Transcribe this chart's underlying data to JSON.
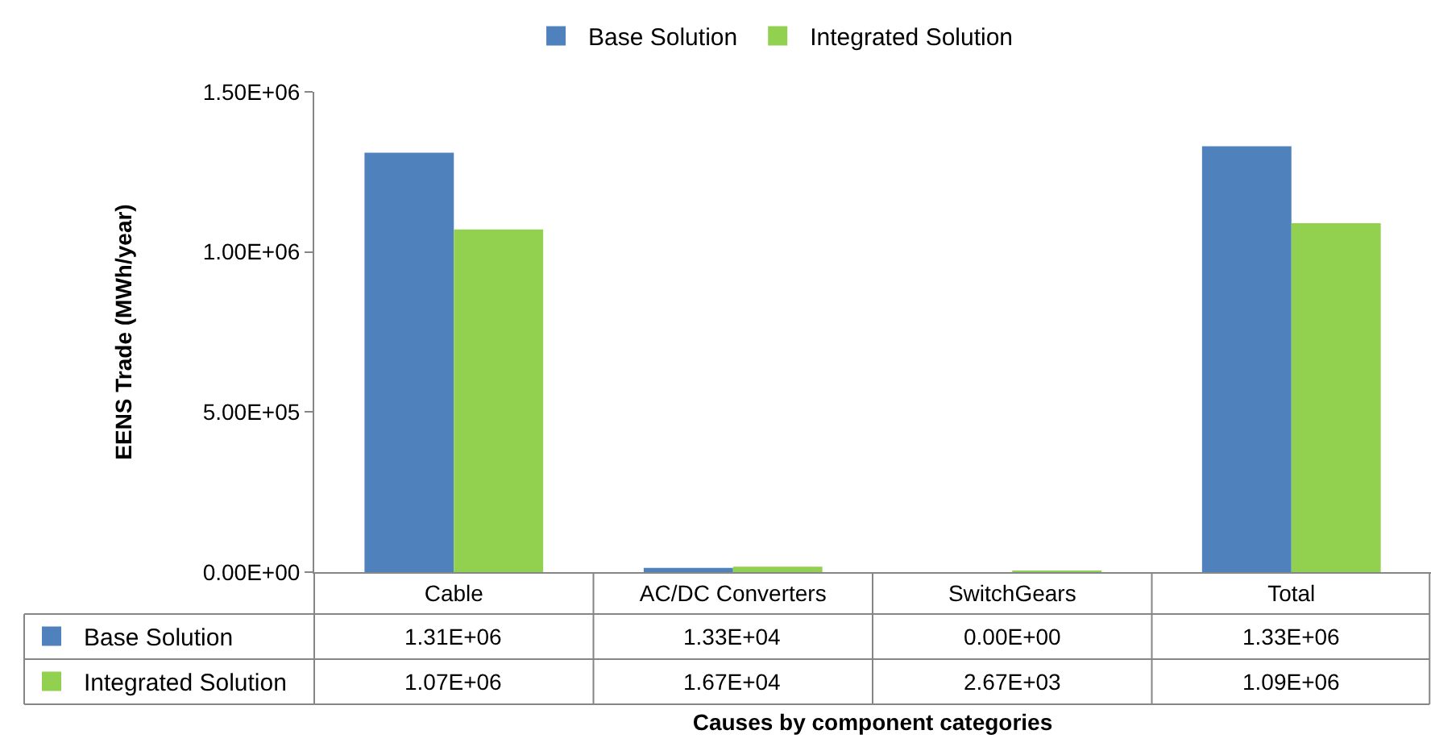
{
  "chart_data": {
    "type": "bar",
    "xlabel": "Causes by component categories",
    "ylabel": "EENS Trade (MWh/year)",
    "categories": [
      "Cable",
      "AC/DC Converters",
      "SwitchGears",
      "Total"
    ],
    "series": [
      {
        "name": "Base Solution",
        "color": "#4f81bd",
        "values": [
          1310000,
          13300,
          0,
          1330000
        ],
        "value_labels": [
          "1.31E+06",
          "1.33E+04",
          "0.00E+00",
          "1.33E+06"
        ]
      },
      {
        "name": "Integrated Solution",
        "color": "#92d050",
        "values": [
          1070000,
          16700,
          2670,
          1090000
        ],
        "value_labels": [
          "1.07E+06",
          "1.67E+04",
          "2.67E+03",
          "1.09E+06"
        ]
      }
    ],
    "ylim": [
      0,
      1500000
    ],
    "yticks": [
      {
        "value": 0,
        "label": "0.00E+00"
      },
      {
        "value": 500000,
        "label": "5.00E+05"
      },
      {
        "value": 1000000,
        "label": "1.00E+06"
      },
      {
        "value": 1500000,
        "label": "1.50E+06"
      }
    ],
    "grid": false,
    "legend": "top"
  }
}
